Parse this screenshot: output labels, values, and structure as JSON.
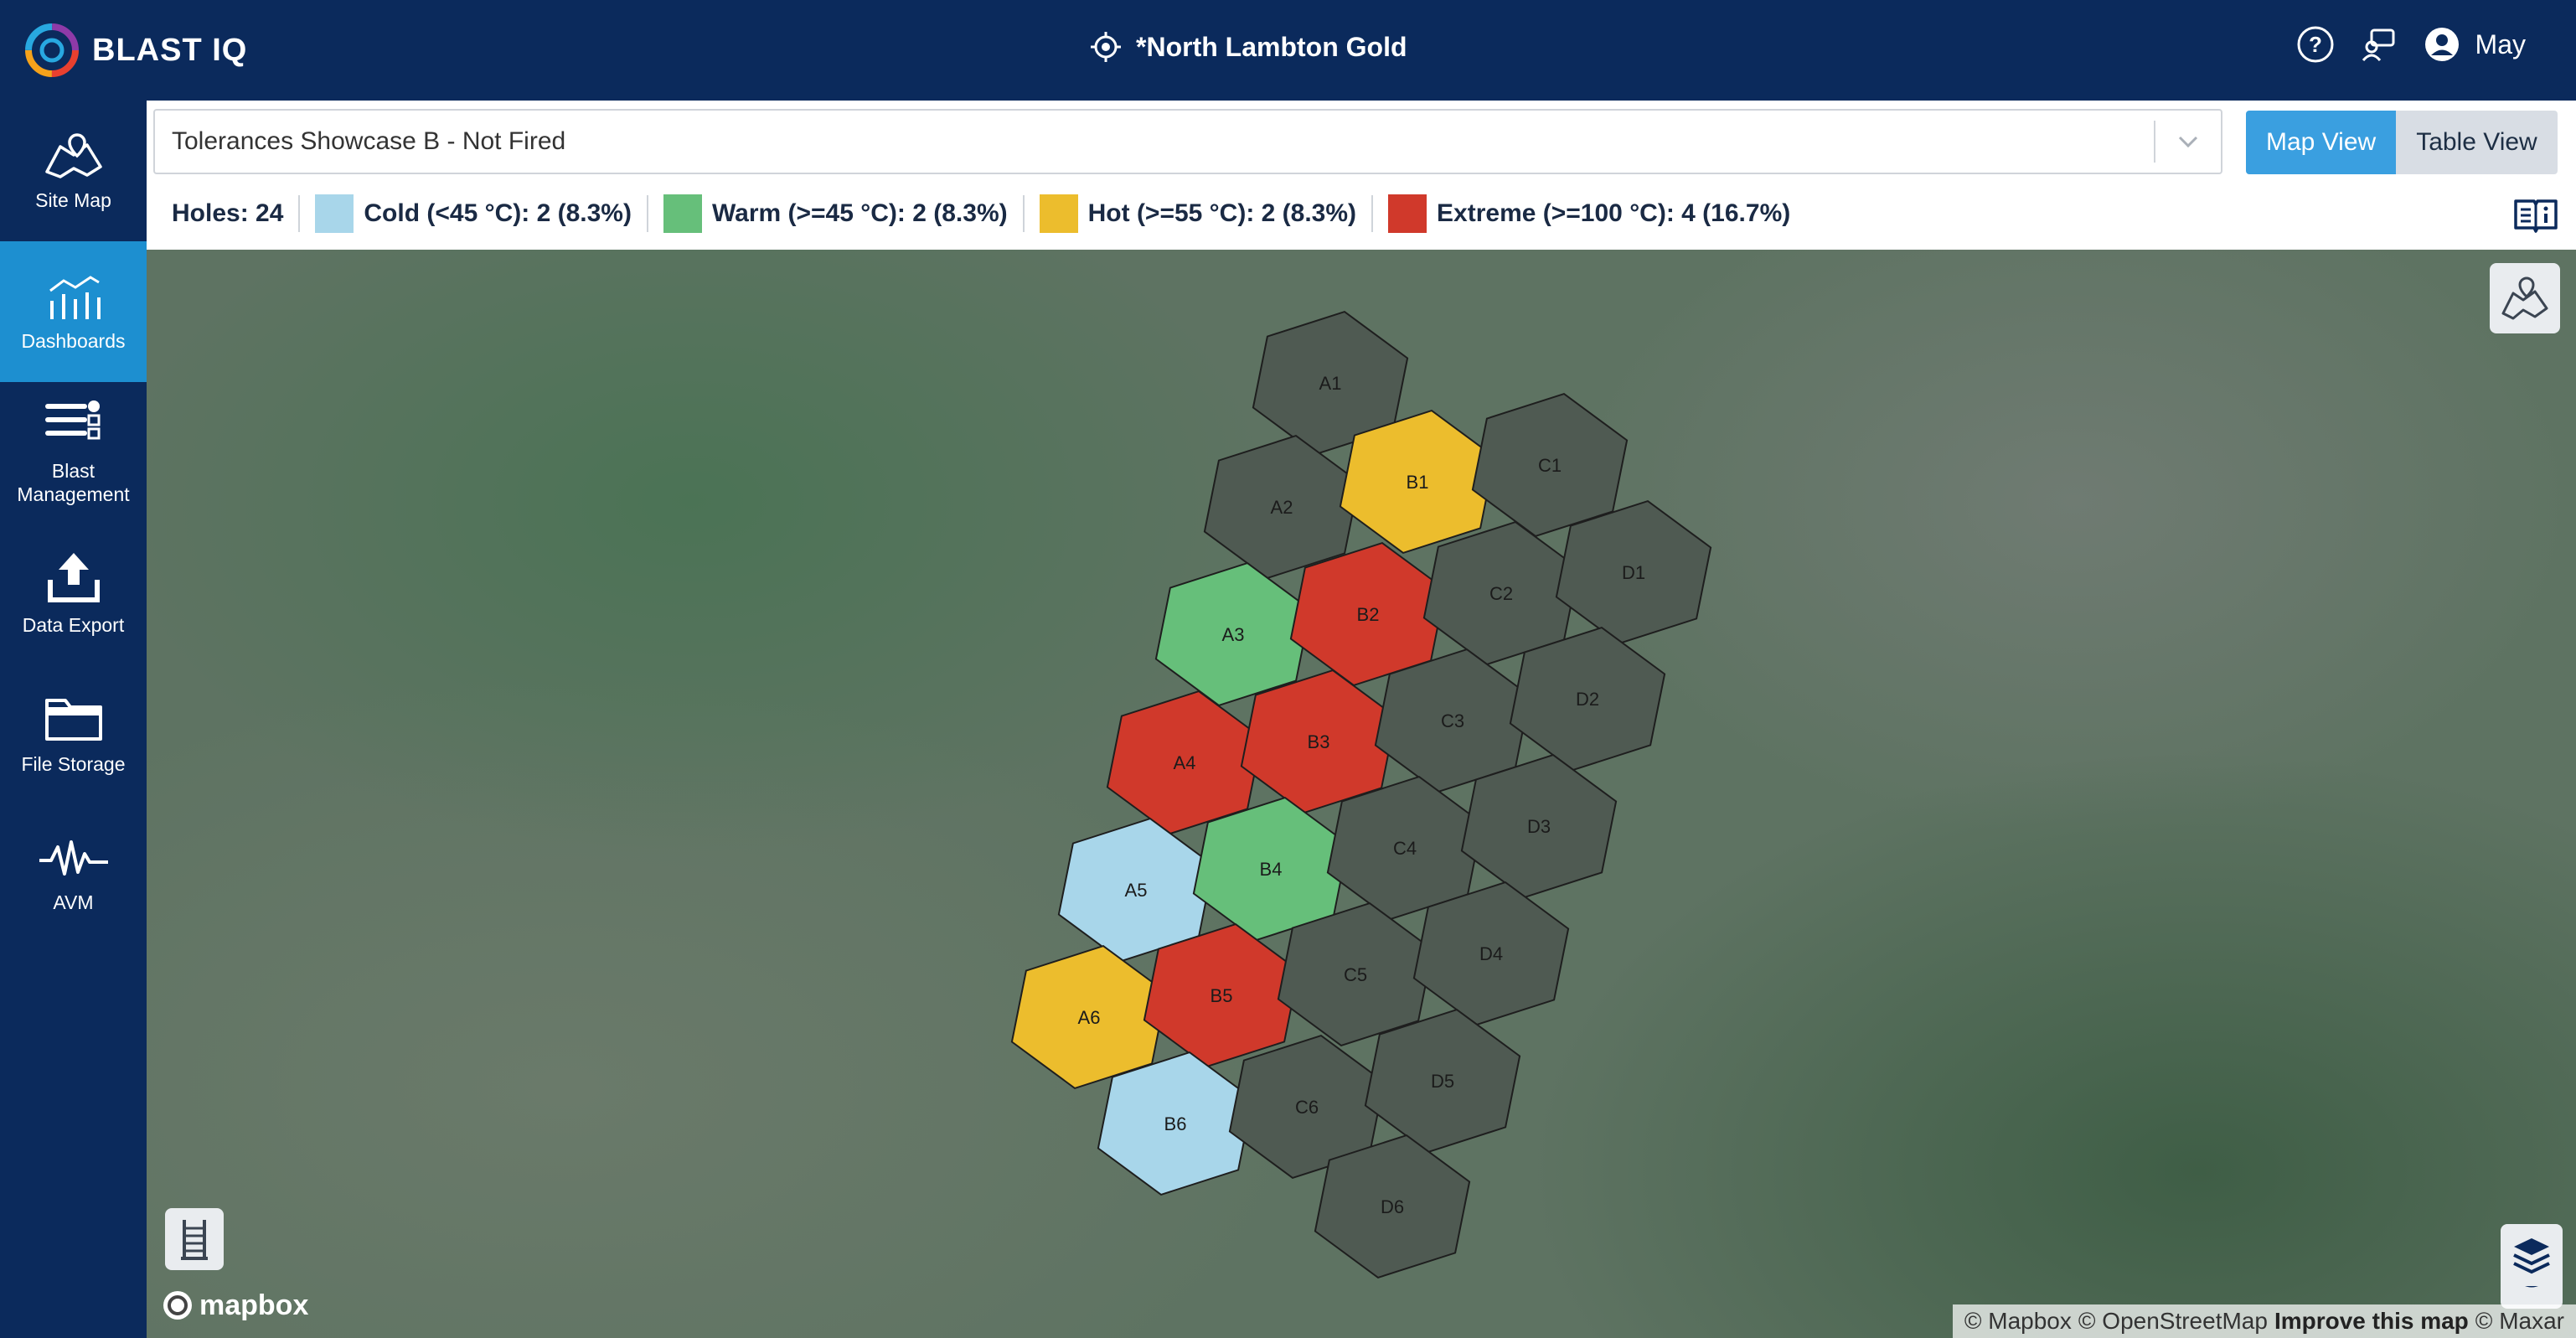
{
  "app": {
    "name": "BLAST IQ"
  },
  "header": {
    "site": "*North Lambton Gold",
    "user": "May"
  },
  "sidebar": {
    "items": [
      {
        "label": "Site Map",
        "icon": "map-icon"
      },
      {
        "label": "Dashboards",
        "icon": "dashboard-icon",
        "active": true
      },
      {
        "label": "Blast\nManagement",
        "icon": "blast-management-icon"
      },
      {
        "label": "Data Export",
        "icon": "upload-icon"
      },
      {
        "label": "File Storage",
        "icon": "folder-icon"
      },
      {
        "label": "AVM",
        "icon": "waveform-icon"
      }
    ]
  },
  "controls": {
    "blast_select": "Tolerances Showcase B - Not Fired",
    "views": {
      "map": "Map View",
      "table": "Table View",
      "active": "map"
    }
  },
  "legend": {
    "holes": "Holes: 24",
    "items": [
      {
        "label": "Cold (<45 °C): 2 (8.3%)",
        "color": "#a8d6ea"
      },
      {
        "label": "Warm (>=45 °C): 2 (8.3%)",
        "color": "#66bf7a"
      },
      {
        "label": "Hot (>=55 °C): 2 (8.3%)",
        "color": "#ecbd2d"
      },
      {
        "label": "Extreme (>=100 °C): 4 (16.7%)",
        "color": "#d0392b"
      }
    ]
  },
  "map": {
    "cells": [
      {
        "id": "A1",
        "status": "none"
      },
      {
        "id": "A2",
        "status": "none"
      },
      {
        "id": "A3",
        "status": "warm"
      },
      {
        "id": "A4",
        "status": "extreme"
      },
      {
        "id": "A5",
        "status": "cold"
      },
      {
        "id": "A6",
        "status": "hot"
      },
      {
        "id": "B1",
        "status": "hot"
      },
      {
        "id": "B2",
        "status": "extreme"
      },
      {
        "id": "B3",
        "status": "extreme"
      },
      {
        "id": "B4",
        "status": "warm"
      },
      {
        "id": "B5",
        "status": "extreme"
      },
      {
        "id": "B6",
        "status": "cold"
      },
      {
        "id": "C1",
        "status": "none"
      },
      {
        "id": "C2",
        "status": "none"
      },
      {
        "id": "C3",
        "status": "none"
      },
      {
        "id": "C4",
        "status": "none"
      },
      {
        "id": "C5",
        "status": "none"
      },
      {
        "id": "C6",
        "status": "none"
      },
      {
        "id": "D1",
        "status": "none"
      },
      {
        "id": "D2",
        "status": "none"
      },
      {
        "id": "D3",
        "status": "none"
      },
      {
        "id": "D4",
        "status": "none"
      },
      {
        "id": "D5",
        "status": "none"
      },
      {
        "id": "D6",
        "status": "none"
      }
    ],
    "colors": {
      "none": "#4f5a52",
      "cold": "#a8d6ea",
      "warm": "#66bf7a",
      "hot": "#ecbd2d",
      "extreme": "#d0392b"
    },
    "mapbox_logo": "mapbox",
    "attribution": {
      "mapbox": "© Mapbox",
      "osm": "© OpenStreetMap",
      "improve": "Improve this map",
      "maxar": "© Maxar"
    }
  }
}
